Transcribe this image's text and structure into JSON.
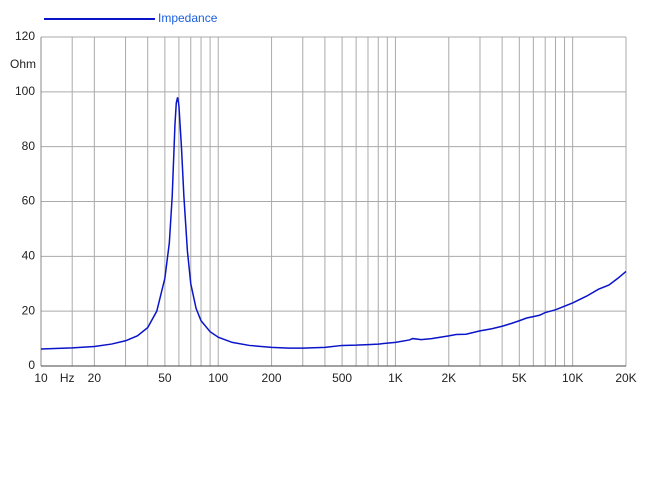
{
  "chart_data": {
    "type": "line",
    "y_label": "Ohm",
    "x": [
      10,
      15,
      20,
      25,
      30,
      35,
      40,
      45,
      50,
      53,
      55,
      57,
      58,
      59,
      60,
      62,
      64,
      67,
      70,
      75,
      80,
      90,
      100,
      120,
      150,
      200,
      250,
      300,
      400,
      500,
      600,
      700,
      800,
      1000,
      1200,
      1250,
      1400,
      1600,
      2000,
      2200,
      2500,
      3000,
      3500,
      4000,
      4500,
      5000,
      5500,
      6000,
      6500,
      7000,
      8000,
      10000,
      12000,
      14000,
      16000,
      18000,
      20000
    ],
    "series": [
      {
        "name": "Impedance",
        "color": "#0a14c8",
        "values": [
          6.2,
          6.6,
          7.1,
          8,
          9.2,
          11,
          14,
          20,
          32,
          45,
          62,
          88,
          96,
          98,
          95,
          80,
          62,
          42,
          30,
          21,
          16.5,
          12.5,
          10.5,
          8.6,
          7.5,
          6.8,
          6.5,
          6.5,
          6.8,
          7.5,
          7.6,
          7.8,
          8,
          8.6,
          9.5,
          10,
          9.6,
          10,
          11,
          11.5,
          11.6,
          12.8,
          13.6,
          14.5,
          15.5,
          16.5,
          17.5,
          18,
          18.5,
          19.5,
          20.5,
          23,
          25.5,
          28,
          29.5,
          32,
          34.5
        ]
      }
    ],
    "xlim": [
      10,
      20000
    ],
    "xlog": true,
    "xticks": [
      10,
      {
        "value": 15,
        "label": "Hz"
      },
      20,
      50,
      100,
      200,
      500,
      {
        "value": 1000,
        "label": "1K"
      },
      {
        "value": 2000,
        "label": "2K"
      },
      {
        "value": 5000,
        "label": "5K"
      },
      {
        "value": 10000,
        "label": "10K"
      },
      {
        "value": 20000,
        "label": "20K"
      }
    ],
    "xgrid": [
      15,
      20,
      30,
      40,
      50,
      60,
      70,
      80,
      90,
      100,
      200,
      300,
      400,
      500,
      600,
      700,
      800,
      900,
      1000,
      2000,
      3000,
      4000,
      5000,
      6000,
      7000,
      8000,
      9000,
      10000,
      20000
    ],
    "ylim": [
      0,
      120
    ],
    "yticks": [
      0,
      20,
      40,
      60,
      80,
      100,
      120
    ],
    "grid": true
  }
}
